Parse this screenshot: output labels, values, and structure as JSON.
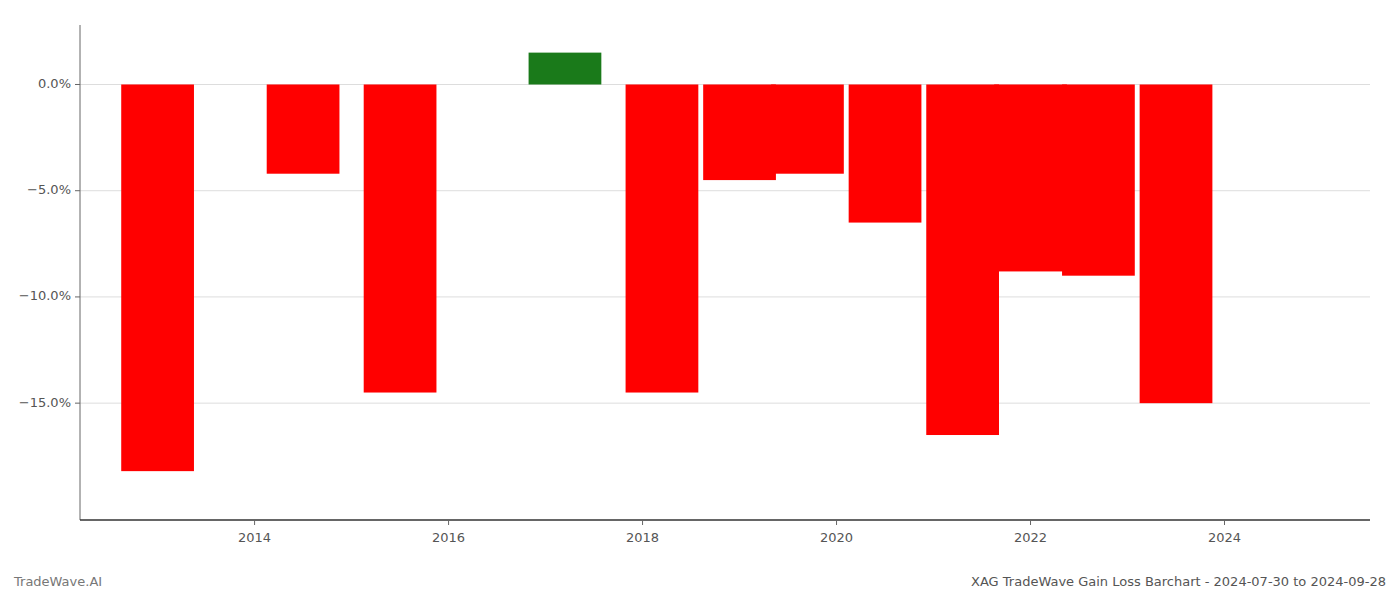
{
  "chart_data": {
    "type": "bar",
    "title": "XAG TradeWave Gain Loss Barchart - 2024-07-30 to 2024-09-28",
    "annotations": [
      "TradeWave.AI"
    ],
    "x": [
      2013.0,
      2014.5,
      2015.5,
      2017.2,
      2018.2,
      2019.0,
      2019.7,
      2020.5,
      2021.3,
      2022.0,
      2022.7,
      2023.5
    ],
    "values": [
      -18.2,
      -4.2,
      -14.5,
      1.5,
      -14.5,
      -4.5,
      -4.2,
      -6.5,
      -16.5,
      -8.8,
      -9.0,
      -15.0
    ],
    "colors": [
      "#ff0000",
      "#ff0000",
      "#ff0000",
      "#1a7a1a",
      "#ff0000",
      "#ff0000",
      "#ff0000",
      "#ff0000",
      "#ff0000",
      "#ff0000",
      "#ff0000",
      "#ff0000"
    ],
    "xlim": [
      2012.2,
      2025.5
    ],
    "xticks": [
      2014,
      2016,
      2018,
      2020,
      2022,
      2024
    ],
    "ylim": [
      -20.5,
      2.8
    ],
    "yticks": [
      {
        "value": 0.0,
        "label": "0.0%"
      },
      {
        "value": -5.0,
        "label": "−5.0%"
      },
      {
        "value": -10.0,
        "label": "−10.0%"
      },
      {
        "value": -15.0,
        "label": "−15.0%"
      }
    ],
    "grid": true
  }
}
